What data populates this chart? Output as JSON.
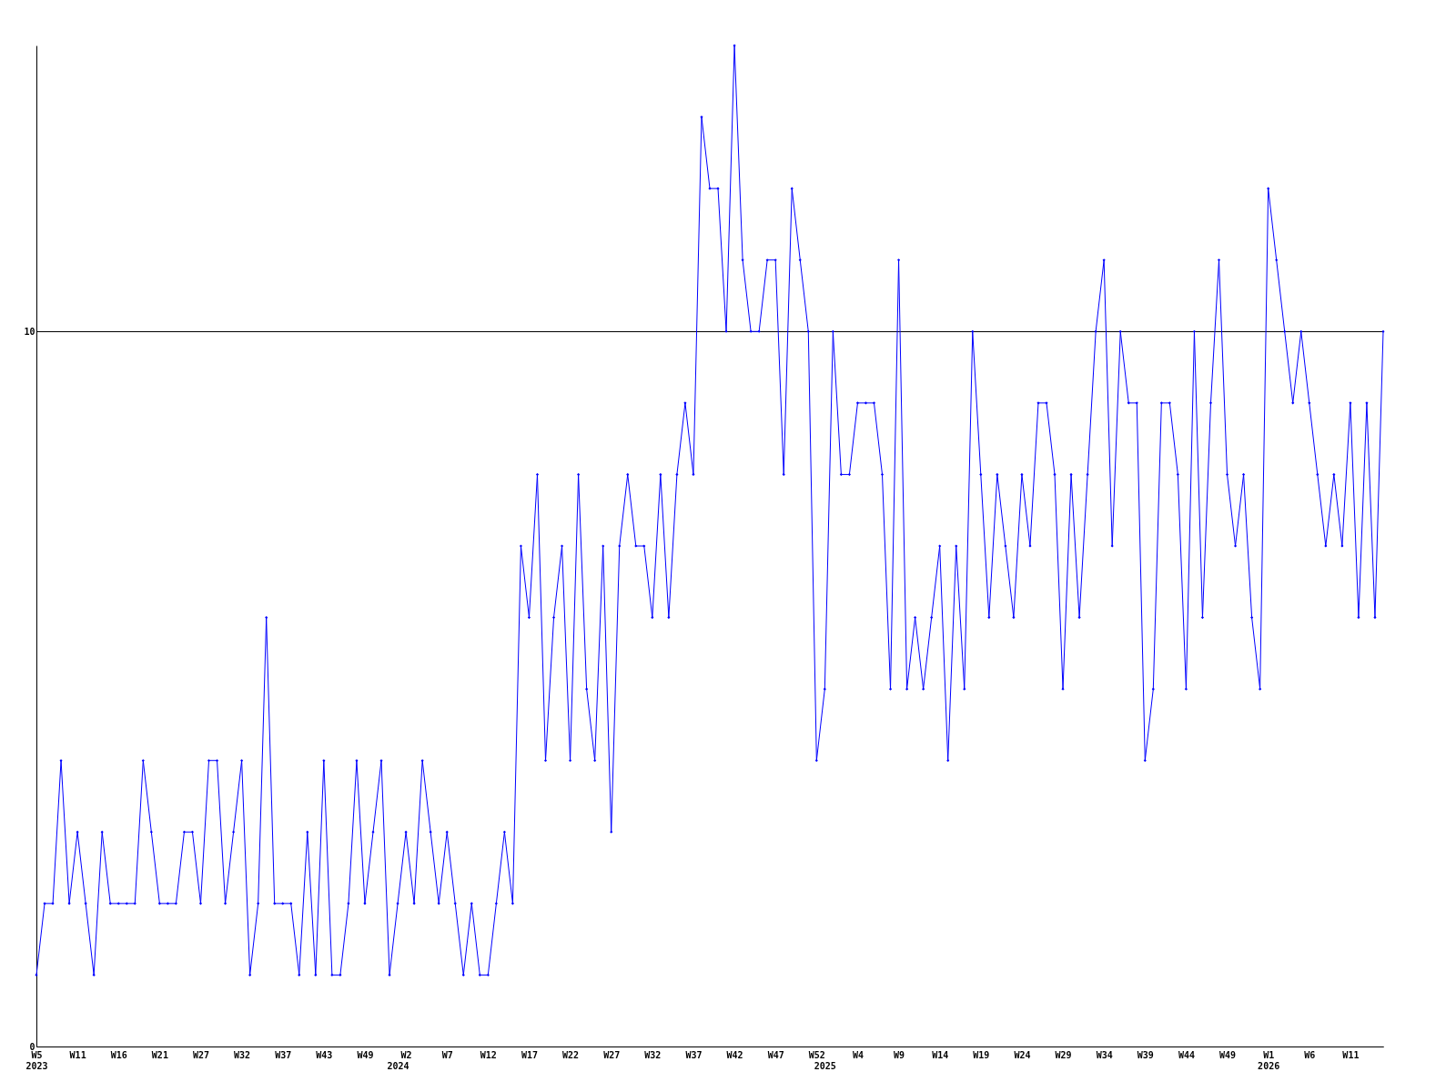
{
  "chart_data": {
    "type": "line",
    "categories": [
      "W5\n2023",
      null,
      null,
      null,
      null,
      "W11",
      null,
      null,
      null,
      null,
      "W16",
      null,
      null,
      null,
      null,
      "W21",
      null,
      null,
      null,
      null,
      "W27",
      null,
      null,
      null,
      null,
      "W32",
      null,
      null,
      null,
      null,
      "W37",
      null,
      null,
      null,
      null,
      "W43",
      null,
      null,
      null,
      null,
      "W49",
      null,
      null,
      null,
      "\n2024",
      "W2",
      null,
      null,
      null,
      null,
      "W7",
      null,
      null,
      null,
      null,
      "W12",
      null,
      null,
      null,
      null,
      "W17",
      null,
      null,
      null,
      null,
      "W22",
      null,
      null,
      null,
      null,
      "W27",
      null,
      null,
      null,
      null,
      "W32",
      null,
      null,
      null,
      null,
      "W37",
      null,
      null,
      null,
      null,
      "W42",
      null,
      null,
      null,
      null,
      "W47",
      null,
      null,
      null,
      null,
      "W52",
      "\n2025",
      null,
      null,
      null,
      "W4",
      null,
      null,
      null,
      null,
      "W9",
      null,
      null,
      null,
      null,
      "W14",
      null,
      null,
      null,
      null,
      "W19",
      null,
      null,
      null,
      null,
      "W24",
      null,
      null,
      null,
      null,
      "W29",
      null,
      null,
      null,
      null,
      "W34",
      null,
      null,
      null,
      null,
      "W39",
      null,
      null,
      null,
      null,
      "W44",
      null,
      null,
      null,
      null,
      "W49",
      null,
      null,
      null,
      null,
      "W1\n2026",
      null,
      null,
      null,
      null,
      "W6",
      null,
      null,
      null,
      null,
      "W11",
      null,
      null,
      null,
      null
    ],
    "series": [
      {
        "color": "#0000ff",
        "values": [
          1,
          2,
          2,
          4,
          2,
          3,
          2,
          1,
          3,
          2,
          2,
          2,
          2,
          4,
          3,
          2,
          2,
          2,
          3,
          3,
          2,
          4,
          4,
          2,
          3,
          4,
          1,
          2,
          6,
          2,
          2,
          2,
          1,
          3,
          1,
          4,
          1,
          1,
          2,
          4,
          2,
          3,
          4,
          1,
          2,
          3,
          2,
          4,
          3,
          2,
          3,
          2,
          1,
          2,
          1,
          1,
          2,
          3,
          2,
          7,
          6,
          8,
          4,
          6,
          7,
          4,
          8,
          5,
          4,
          7,
          3,
          7,
          8,
          7,
          7,
          6,
          8,
          6,
          8,
          9,
          8,
          13,
          12,
          12,
          10,
          14,
          11,
          10,
          10,
          11,
          11,
          8,
          12,
          11,
          10,
          4,
          5,
          10,
          8,
          8,
          9,
          9,
          9,
          8,
          5,
          11,
          5,
          6,
          5,
          6,
          7,
          4,
          7,
          5,
          10,
          8,
          6,
          8,
          7,
          6,
          8,
          7,
          9,
          9,
          8,
          5,
          8,
          6,
          8,
          10,
          11,
          7,
          10,
          9,
          9,
          4,
          5,
          9,
          9,
          8,
          5,
          10,
          6,
          9,
          11,
          8,
          7,
          8,
          6,
          5,
          12,
          11,
          10,
          9,
          10,
          9,
          8,
          7,
          8,
          7,
          9,
          6,
          9,
          6,
          10
        ]
      }
    ],
    "ylim": [
      0,
      14
    ],
    "yticks": [
      0,
      10
    ],
    "grid": "y",
    "marker": "diamond",
    "line_style": "solid"
  }
}
